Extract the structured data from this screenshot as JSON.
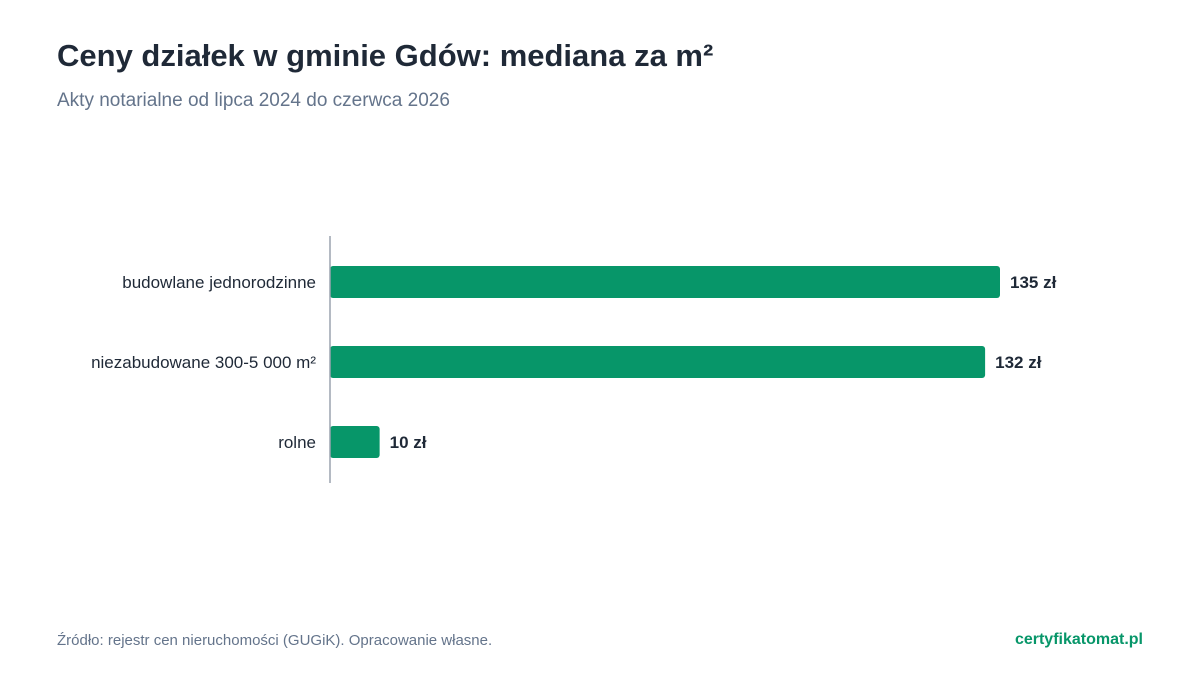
{
  "header": {
    "title": "Ceny działek w gminie Gdów: mediana za m²",
    "subtitle": "Akty notarialne od lipca 2024 do czerwca 2026"
  },
  "chart_data": {
    "type": "bar",
    "orientation": "horizontal",
    "categories": [
      "budowlane jednorodzinne",
      "niezabudowane 300-5 000 m²",
      "rolne"
    ],
    "values": [
      135,
      132,
      10
    ],
    "value_labels": [
      "135 zł",
      "132 zł",
      "10 zł"
    ],
    "xlim": [
      0,
      135
    ],
    "grid": false,
    "bar_color": "#079669"
  },
  "footer": {
    "source": "Źródło: rejestr cen nieruchomości (GUGiK). Opracowanie własne.",
    "brand": "certyfikatomat.pl",
    "brand_color": "#079669"
  }
}
